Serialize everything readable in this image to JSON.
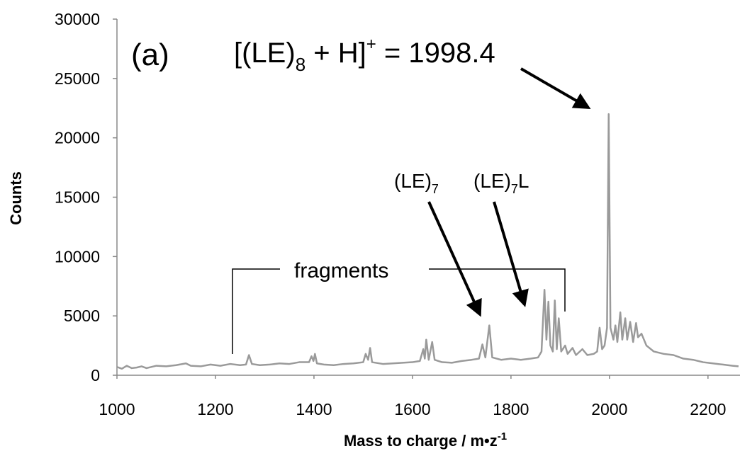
{
  "chart_data": {
    "type": "line",
    "color": "#9a9a9a",
    "x_label": [
      "Mass to charge / m•z",
      "-1"
    ],
    "y_label": "Counts",
    "annotations": {
      "panel": "(a)",
      "peak_label": [
        "[(LE)",
        "8",
        " + H]",
        "+",
        " = 1998.4"
      ],
      "le7": [
        "(LE)",
        "7"
      ],
      "le7l": [
        "(LE)",
        "7",
        "L"
      ],
      "fragments": "fragments"
    },
    "xlim": [
      1000,
      2265
    ],
    "xticks": [
      1000,
      1200,
      1400,
      1600,
      1800,
      2000,
      2200
    ],
    "ylim": [
      0,
      30000
    ],
    "yticks": [
      0,
      5000,
      10000,
      15000,
      20000,
      25000,
      30000
    ],
    "x": [
      1000,
      1010,
      1020,
      1030,
      1040,
      1050,
      1060,
      1080,
      1100,
      1120,
      1140,
      1150,
      1170,
      1190,
      1210,
      1230,
      1250,
      1262,
      1268,
      1274,
      1290,
      1310,
      1330,
      1350,
      1370,
      1390,
      1395,
      1399,
      1402,
      1406,
      1420,
      1440,
      1460,
      1480,
      1500,
      1505,
      1510,
      1514,
      1518,
      1540,
      1560,
      1580,
      1600,
      1615,
      1622,
      1625,
      1628,
      1633,
      1640,
      1645,
      1660,
      1680,
      1700,
      1720,
      1735,
      1742,
      1748,
      1756,
      1762,
      1780,
      1800,
      1820,
      1840,
      1855,
      1862,
      1868,
      1872,
      1876,
      1880,
      1885,
      1889,
      1893,
      1897,
      1902,
      1910,
      1915,
      1925,
      1932,
      1945,
      1955,
      1968,
      1975,
      1980,
      1985,
      1990,
      1995,
      1998.4,
      2002,
      2008,
      2012,
      2016,
      2022,
      2026,
      2032,
      2036,
      2042,
      2048,
      2054,
      2058,
      2065,
      2075,
      2090,
      2110,
      2130,
      2150,
      2170,
      2190,
      2210,
      2230,
      2250,
      2262
    ],
    "values": [
      700,
      550,
      800,
      600,
      650,
      750,
      600,
      800,
      750,
      850,
      1000,
      800,
      750,
      900,
      800,
      950,
      850,
      900,
      1700,
      950,
      850,
      900,
      1000,
      950,
      1100,
      1100,
      1600,
      1200,
      1800,
      1000,
      900,
      850,
      950,
      1000,
      1100,
      1800,
      1300,
      2300,
      1100,
      950,
      1000,
      1050,
      1100,
      1200,
      2200,
      1400,
      3000,
      1300,
      2800,
      1300,
      1100,
      1050,
      1200,
      1300,
      1400,
      2600,
      1500,
      4200,
      1500,
      1300,
      1400,
      1300,
      1400,
      1500,
      2000,
      7200,
      3000,
      6200,
      2500,
      2000,
      6300,
      2200,
      4800,
      2000,
      2500,
      1800,
      2300,
      1700,
      2200,
      1700,
      1800,
      2000,
      4000,
      2200,
      2500,
      4000,
      22000,
      4000,
      3000,
      4200,
      2800,
      5300,
      3000,
      4800,
      3000,
      4500,
      2800,
      4400,
      3200,
      3500,
      2500,
      2000,
      1800,
      1700,
      1400,
      1300,
      1100,
      1000,
      900,
      800,
      750
    ]
  }
}
